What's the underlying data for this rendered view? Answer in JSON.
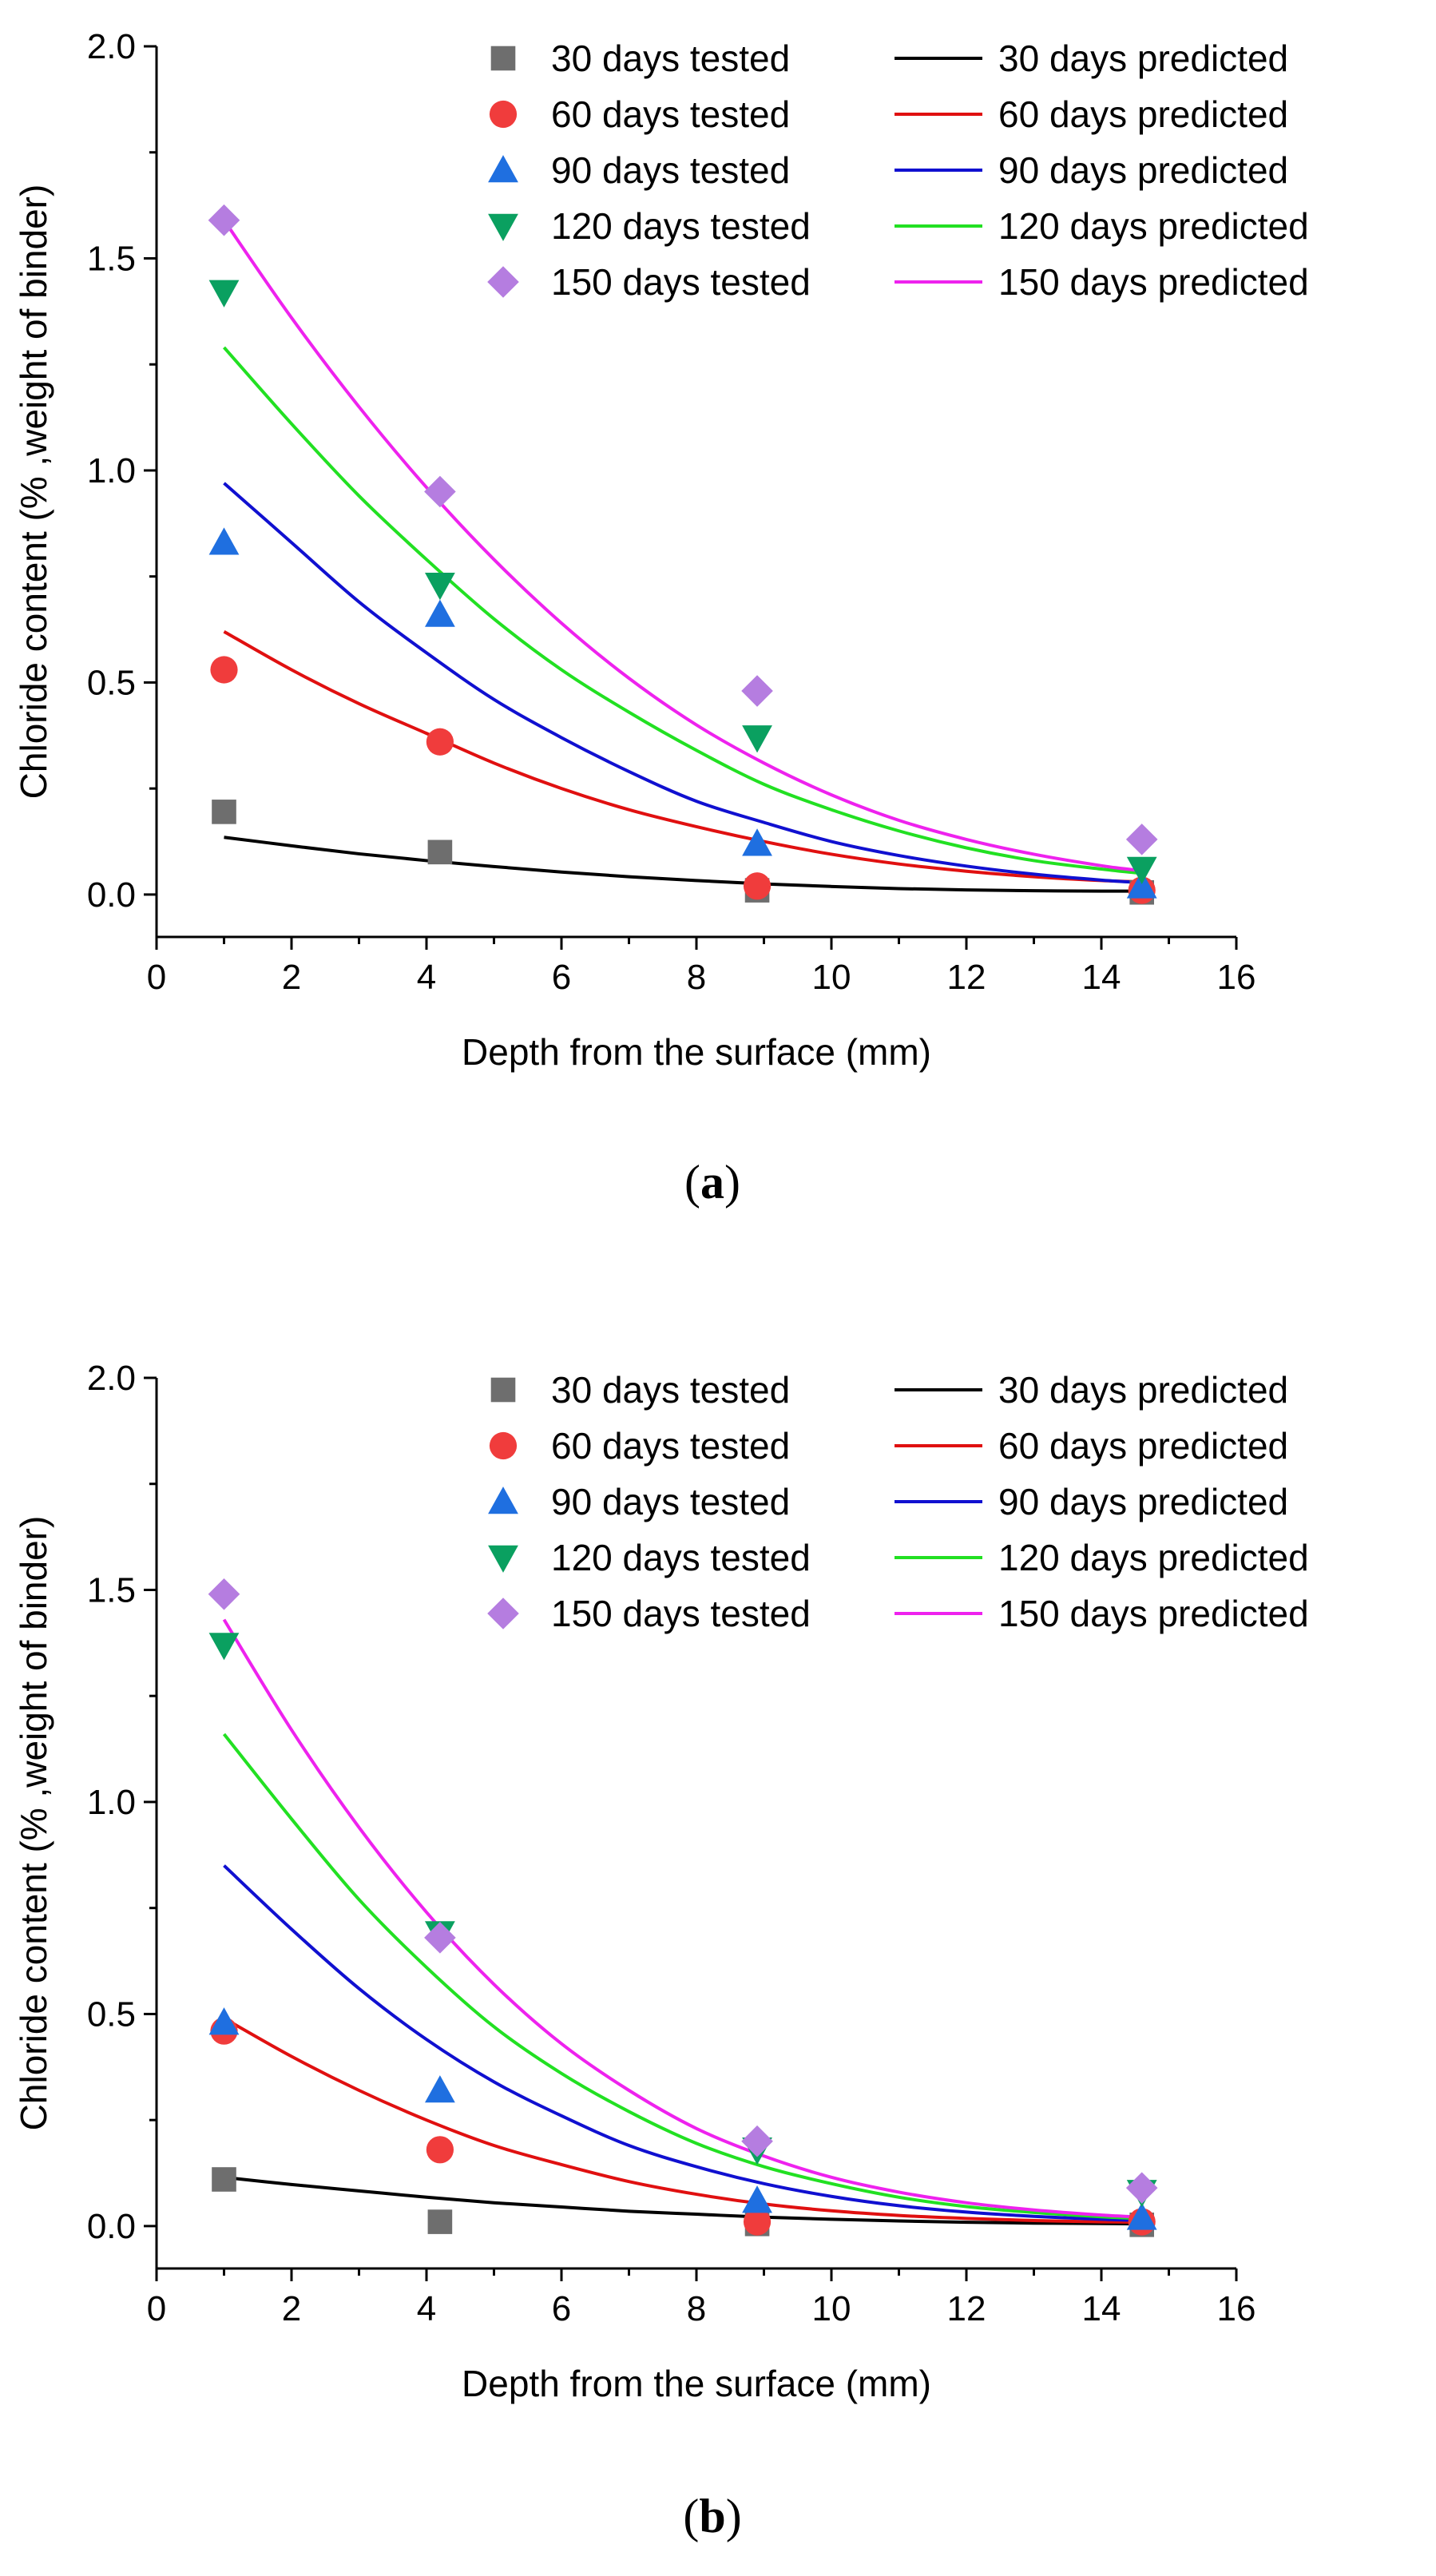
{
  "chart_data": [
    {
      "type": "scatter",
      "panel_label": "a",
      "xlabel": "Depth from the surface (mm)",
      "ylabel": "Chloride content (% ,weight of binder)",
      "xlim": [
        0,
        16
      ],
      "ylim": [
        -0.1,
        2.0
      ],
      "x_ticks": [
        0,
        2,
        4,
        6,
        8,
        10,
        12,
        14,
        16
      ],
      "y_ticks": [
        0.0,
        0.5,
        1.0,
        1.5,
        2.0
      ],
      "x_tick_labels": [
        "0",
        "2",
        "4",
        "6",
        "8",
        "10",
        "12",
        "14",
        "16"
      ],
      "y_tick_labels": [
        "0.0",
        "0.5",
        "1.0",
        "1.5",
        "2.0"
      ],
      "legend_position": "top-right",
      "tested": [
        {
          "name": "30 days tested",
          "color": "#6e6e6e",
          "marker": "square",
          "x": [
            1.0,
            4.2,
            8.9,
            14.6
          ],
          "y": [
            0.195,
            0.1,
            0.01,
            0.005
          ]
        },
        {
          "name": "60 days tested",
          "color": "#f03c3c",
          "marker": "circle",
          "x": [
            1.0,
            4.2,
            8.9,
            14.6
          ],
          "y": [
            0.53,
            0.36,
            0.02,
            0.01
          ]
        },
        {
          "name": "90 days tested",
          "color": "#1f6fe0",
          "marker": "triangle-up",
          "x": [
            1.0,
            4.2,
            8.9,
            14.6
          ],
          "y": [
            0.83,
            0.66,
            0.12,
            0.02
          ]
        },
        {
          "name": "120 days tested",
          "color": "#0aa060",
          "marker": "triangle-down",
          "x": [
            1.0,
            4.2,
            8.9,
            14.6
          ],
          "y": [
            1.42,
            0.73,
            0.37,
            0.06
          ]
        },
        {
          "name": "150 days tested",
          "color": "#b57de0",
          "marker": "diamond",
          "x": [
            1.0,
            4.2,
            8.9,
            14.6
          ],
          "y": [
            1.59,
            0.95,
            0.48,
            0.13
          ]
        }
      ],
      "predicted": [
        {
          "name": "30 days predicted",
          "color": "#000000",
          "x": [
            1,
            2,
            3,
            4,
            5,
            6,
            7,
            8,
            9,
            10,
            11,
            12,
            13,
            14,
            14.6
          ],
          "y": [
            0.135,
            0.115,
            0.096,
            0.08,
            0.066,
            0.053,
            0.042,
            0.033,
            0.025,
            0.019,
            0.014,
            0.011,
            0.009,
            0.008,
            0.008
          ]
        },
        {
          "name": "60 days predicted",
          "color": "#e01010",
          "x": [
            1,
            2,
            3,
            4,
            5,
            6,
            7,
            8,
            9,
            10,
            11,
            12,
            13,
            14,
            14.6
          ],
          "y": [
            0.62,
            0.53,
            0.45,
            0.38,
            0.31,
            0.25,
            0.2,
            0.16,
            0.125,
            0.095,
            0.072,
            0.055,
            0.042,
            0.033,
            0.03
          ]
        },
        {
          "name": "90 days predicted",
          "color": "#1010d0",
          "x": [
            1,
            2,
            3,
            4,
            5,
            6,
            7,
            8,
            9,
            10,
            11,
            12,
            13,
            14,
            14.6
          ],
          "y": [
            0.97,
            0.83,
            0.69,
            0.57,
            0.46,
            0.37,
            0.29,
            0.22,
            0.17,
            0.125,
            0.092,
            0.067,
            0.048,
            0.034,
            0.028
          ]
        },
        {
          "name": "120 days predicted",
          "color": "#22e022",
          "x": [
            1,
            2,
            3,
            4,
            5,
            6,
            7,
            8,
            9,
            10,
            11,
            12,
            13,
            14,
            14.6
          ],
          "y": [
            1.29,
            1.11,
            0.94,
            0.79,
            0.65,
            0.53,
            0.43,
            0.34,
            0.26,
            0.2,
            0.15,
            0.11,
            0.08,
            0.06,
            0.05
          ]
        },
        {
          "name": "150 days predicted",
          "color": "#ee22ee",
          "x": [
            1,
            2,
            3,
            4,
            5,
            6,
            7,
            8,
            9,
            10,
            11,
            12,
            13,
            14,
            14.6
          ],
          "y": [
            1.59,
            1.36,
            1.15,
            0.96,
            0.79,
            0.64,
            0.51,
            0.4,
            0.31,
            0.235,
            0.175,
            0.13,
            0.095,
            0.068,
            0.056
          ]
        }
      ]
    },
    {
      "type": "scatter",
      "panel_label": "b",
      "xlabel": "Depth from the surface (mm)",
      "ylabel": "Chloride content (% ,weight of binder)",
      "xlim": [
        0,
        16
      ],
      "ylim": [
        -0.1,
        2.0
      ],
      "x_ticks": [
        0,
        2,
        4,
        6,
        8,
        10,
        12,
        14,
        16
      ],
      "y_ticks": [
        0.0,
        0.5,
        1.0,
        1.5,
        2.0
      ],
      "x_tick_labels": [
        "0",
        "2",
        "4",
        "6",
        "8",
        "10",
        "12",
        "14",
        "16"
      ],
      "y_tick_labels": [
        "0.0",
        "0.5",
        "1.0",
        "1.5",
        "2.0"
      ],
      "legend_position": "top-right",
      "tested": [
        {
          "name": "30 days tested",
          "color": "#6e6e6e",
          "marker": "square",
          "x": [
            1.0,
            4.2,
            8.9,
            14.6
          ],
          "y": [
            0.11,
            0.01,
            0.005,
            0.003
          ]
        },
        {
          "name": "60 days tested",
          "color": "#f03c3c",
          "marker": "circle",
          "x": [
            1.0,
            4.2,
            8.9,
            14.6
          ],
          "y": [
            0.46,
            0.18,
            0.01,
            0.01
          ]
        },
        {
          "name": "90 days tested",
          "color": "#1f6fe0",
          "marker": "triangle-up",
          "x": [
            1.0,
            4.2,
            8.9,
            14.6
          ],
          "y": [
            0.48,
            0.32,
            0.06,
            0.02
          ]
        },
        {
          "name": "120 days tested",
          "color": "#0aa060",
          "marker": "triangle-down",
          "x": [
            1.0,
            4.2,
            8.9,
            14.6
          ],
          "y": [
            1.37,
            0.69,
            0.18,
            0.08
          ]
        },
        {
          "name": "150 days tested",
          "color": "#b57de0",
          "marker": "diamond",
          "x": [
            1.0,
            4.2,
            8.9,
            14.6
          ],
          "y": [
            1.49,
            0.68,
            0.2,
            0.09
          ]
        }
      ],
      "predicted": [
        {
          "name": "30 days predicted",
          "color": "#000000",
          "x": [
            1,
            2,
            3,
            4,
            5,
            6,
            7,
            8,
            9,
            10,
            11,
            12,
            13,
            14,
            14.6
          ],
          "y": [
            0.115,
            0.098,
            0.083,
            0.068,
            0.055,
            0.045,
            0.035,
            0.028,
            0.021,
            0.016,
            0.012,
            0.009,
            0.007,
            0.006,
            0.005
          ]
        },
        {
          "name": "60 days predicted",
          "color": "#e01010",
          "x": [
            1,
            2,
            3,
            4,
            5,
            6,
            7,
            8,
            9,
            10,
            11,
            12,
            13,
            14,
            14.6
          ],
          "y": [
            0.49,
            0.4,
            0.32,
            0.25,
            0.19,
            0.145,
            0.105,
            0.075,
            0.052,
            0.036,
            0.025,
            0.018,
            0.013,
            0.01,
            0.009
          ]
        },
        {
          "name": "90 days predicted",
          "color": "#1010d0",
          "x": [
            1,
            2,
            3,
            4,
            5,
            6,
            7,
            8,
            9,
            10,
            11,
            12,
            13,
            14,
            14.6
          ],
          "y": [
            0.85,
            0.7,
            0.56,
            0.44,
            0.34,
            0.26,
            0.19,
            0.14,
            0.1,
            0.07,
            0.048,
            0.033,
            0.023,
            0.016,
            0.013
          ]
        },
        {
          "name": "120 days predicted",
          "color": "#22e022",
          "x": [
            1,
            2,
            3,
            4,
            5,
            6,
            7,
            8,
            9,
            10,
            11,
            12,
            13,
            14,
            14.6
          ],
          "y": [
            1.16,
            0.96,
            0.77,
            0.61,
            0.47,
            0.36,
            0.27,
            0.195,
            0.14,
            0.1,
            0.068,
            0.046,
            0.032,
            0.022,
            0.018
          ]
        },
        {
          "name": "150 days predicted",
          "color": "#ee22ee",
          "x": [
            1,
            2,
            3,
            4,
            5,
            6,
            7,
            8,
            9,
            10,
            11,
            12,
            13,
            14,
            14.6
          ],
          "y": [
            1.43,
            1.17,
            0.94,
            0.74,
            0.57,
            0.43,
            0.32,
            0.23,
            0.165,
            0.115,
            0.08,
            0.055,
            0.038,
            0.026,
            0.021
          ]
        }
      ]
    }
  ]
}
